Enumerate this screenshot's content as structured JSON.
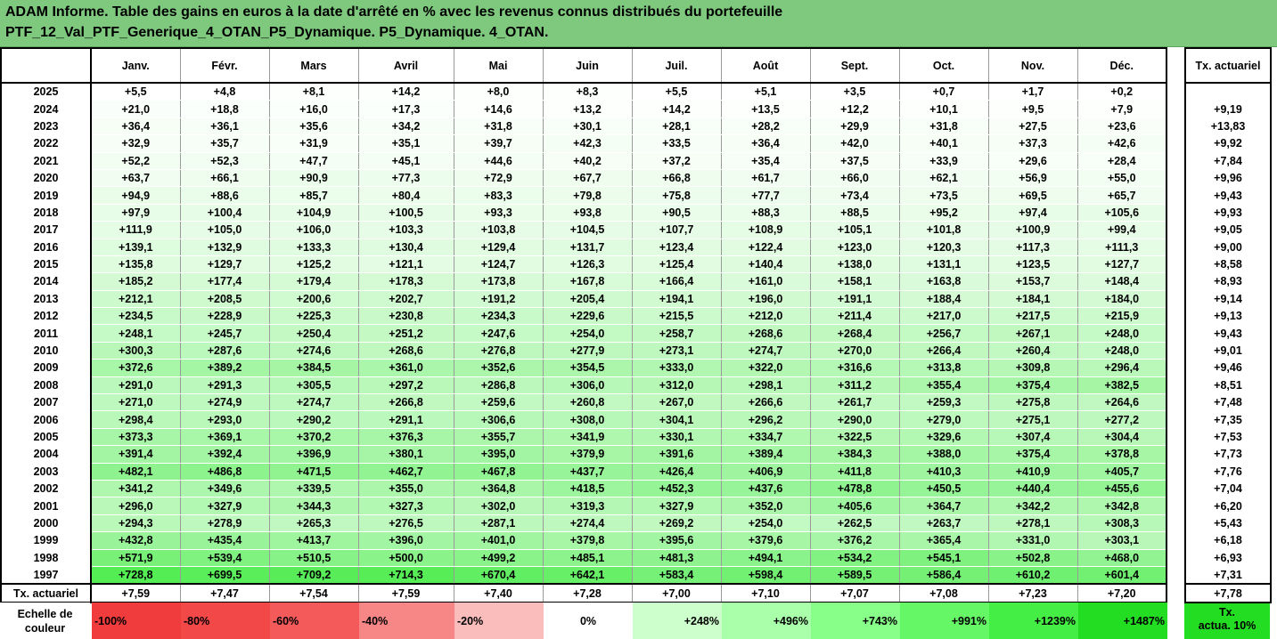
{
  "title_line1": "ADAM Informe. Table des gains en euros à la date d'arrêté en % avec les revenus connus distribués du portefeuille",
  "title_line2": "PTF_12_Val_PTF_Generique_4_OTAN_P5_Dynamique. P5_Dynamique. 4_OTAN.",
  "months": [
    "Janv.",
    "Févr.",
    "Mars",
    "Avril",
    "Mai",
    "Juin",
    "Juil.",
    "Août",
    "Sept.",
    "Oct.",
    "Nov.",
    "Déc."
  ],
  "side_header": "Tx. actuariel",
  "rows": [
    {
      "year": "2025",
      "values": [
        "+5,5",
        "+4,8",
        "+8,1",
        "+14,2",
        "+8,0",
        "+8,3",
        "+5,5",
        "+5,1",
        "+3,5",
        "+0,7",
        "+1,7",
        "+0,2"
      ],
      "tx": ""
    },
    {
      "year": "2024",
      "values": [
        "+21,0",
        "+18,8",
        "+16,0",
        "+17,3",
        "+14,6",
        "+13,2",
        "+14,2",
        "+13,5",
        "+12,2",
        "+10,1",
        "+9,5",
        "+7,9"
      ],
      "tx": "+9,19"
    },
    {
      "year": "2023",
      "values": [
        "+36,4",
        "+36,1",
        "+35,6",
        "+34,2",
        "+31,8",
        "+30,1",
        "+28,1",
        "+28,2",
        "+29,9",
        "+31,8",
        "+27,5",
        "+23,6"
      ],
      "tx": "+13,83"
    },
    {
      "year": "2022",
      "values": [
        "+32,9",
        "+35,7",
        "+31,9",
        "+35,1",
        "+39,7",
        "+42,3",
        "+33,5",
        "+36,4",
        "+42,0",
        "+40,1",
        "+37,3",
        "+42,6"
      ],
      "tx": "+9,92"
    },
    {
      "year": "2021",
      "values": [
        "+52,2",
        "+52,3",
        "+47,7",
        "+45,1",
        "+44,6",
        "+40,2",
        "+37,2",
        "+35,4",
        "+37,5",
        "+33,9",
        "+29,6",
        "+28,4"
      ],
      "tx": "+7,84"
    },
    {
      "year": "2020",
      "values": [
        "+63,7",
        "+66,1",
        "+90,9",
        "+77,3",
        "+72,9",
        "+67,7",
        "+66,8",
        "+61,7",
        "+66,0",
        "+62,1",
        "+56,9",
        "+55,0"
      ],
      "tx": "+9,96"
    },
    {
      "year": "2019",
      "values": [
        "+94,9",
        "+88,6",
        "+85,7",
        "+80,4",
        "+83,3",
        "+79,8",
        "+75,8",
        "+77,7",
        "+73,4",
        "+73,5",
        "+69,5",
        "+65,7"
      ],
      "tx": "+9,43"
    },
    {
      "year": "2018",
      "values": [
        "+97,9",
        "+100,4",
        "+104,9",
        "+100,5",
        "+93,3",
        "+93,8",
        "+90,5",
        "+88,3",
        "+88,5",
        "+95,2",
        "+97,4",
        "+105,6"
      ],
      "tx": "+9,93"
    },
    {
      "year": "2017",
      "values": [
        "+111,9",
        "+105,0",
        "+106,0",
        "+103,3",
        "+103,8",
        "+104,5",
        "+107,7",
        "+108,9",
        "+105,1",
        "+101,8",
        "+100,9",
        "+99,4"
      ],
      "tx": "+9,05"
    },
    {
      "year": "2016",
      "values": [
        "+139,1",
        "+132,9",
        "+133,3",
        "+130,4",
        "+129,4",
        "+131,7",
        "+123,4",
        "+122,4",
        "+123,0",
        "+120,3",
        "+117,3",
        "+111,3"
      ],
      "tx": "+9,00"
    },
    {
      "year": "2015",
      "values": [
        "+135,8",
        "+129,7",
        "+125,2",
        "+121,1",
        "+124,7",
        "+126,3",
        "+125,4",
        "+140,4",
        "+138,0",
        "+131,1",
        "+123,5",
        "+127,7"
      ],
      "tx": "+8,58"
    },
    {
      "year": "2014",
      "values": [
        "+185,2",
        "+177,4",
        "+179,4",
        "+178,3",
        "+173,8",
        "+167,8",
        "+166,4",
        "+161,0",
        "+158,1",
        "+163,8",
        "+153,7",
        "+148,4"
      ],
      "tx": "+8,93"
    },
    {
      "year": "2013",
      "values": [
        "+212,1",
        "+208,5",
        "+200,6",
        "+202,7",
        "+191,2",
        "+205,4",
        "+194,1",
        "+196,0",
        "+191,1",
        "+188,4",
        "+184,1",
        "+184,0"
      ],
      "tx": "+9,14"
    },
    {
      "year": "2012",
      "values": [
        "+234,5",
        "+228,9",
        "+225,3",
        "+230,8",
        "+234,3",
        "+229,6",
        "+215,5",
        "+212,0",
        "+211,4",
        "+217,0",
        "+217,5",
        "+215,9"
      ],
      "tx": "+9,13"
    },
    {
      "year": "2011",
      "values": [
        "+248,1",
        "+245,7",
        "+250,4",
        "+251,2",
        "+247,6",
        "+254,0",
        "+258,7",
        "+268,6",
        "+268,4",
        "+256,7",
        "+267,1",
        "+248,0"
      ],
      "tx": "+9,43"
    },
    {
      "year": "2010",
      "values": [
        "+300,3",
        "+287,6",
        "+274,6",
        "+268,6",
        "+276,8",
        "+277,9",
        "+273,1",
        "+274,7",
        "+270,0",
        "+266,4",
        "+260,4",
        "+248,0"
      ],
      "tx": "+9,01"
    },
    {
      "year": "2009",
      "values": [
        "+372,6",
        "+389,2",
        "+384,5",
        "+361,0",
        "+352,6",
        "+354,5",
        "+333,0",
        "+322,0",
        "+316,6",
        "+313,8",
        "+309,8",
        "+296,4"
      ],
      "tx": "+9,46"
    },
    {
      "year": "2008",
      "values": [
        "+291,0",
        "+291,3",
        "+305,5",
        "+297,2",
        "+286,8",
        "+306,0",
        "+312,0",
        "+298,1",
        "+311,2",
        "+355,4",
        "+375,4",
        "+382,5"
      ],
      "tx": "+8,51"
    },
    {
      "year": "2007",
      "values": [
        "+271,0",
        "+274,9",
        "+274,7",
        "+266,8",
        "+259,6",
        "+260,8",
        "+267,0",
        "+266,6",
        "+261,7",
        "+259,3",
        "+275,8",
        "+264,6"
      ],
      "tx": "+7,48"
    },
    {
      "year": "2006",
      "values": [
        "+298,4",
        "+293,0",
        "+290,2",
        "+291,1",
        "+306,6",
        "+308,0",
        "+304,1",
        "+296,2",
        "+290,0",
        "+279,0",
        "+275,1",
        "+277,2"
      ],
      "tx": "+7,35"
    },
    {
      "year": "2005",
      "values": [
        "+373,3",
        "+369,1",
        "+370,2",
        "+376,3",
        "+355,7",
        "+341,9",
        "+330,1",
        "+334,7",
        "+322,5",
        "+329,6",
        "+307,4",
        "+304,4"
      ],
      "tx": "+7,53"
    },
    {
      "year": "2004",
      "values": [
        "+391,4",
        "+392,4",
        "+396,9",
        "+380,1",
        "+395,0",
        "+379,9",
        "+391,6",
        "+389,4",
        "+384,3",
        "+388,0",
        "+375,4",
        "+378,8"
      ],
      "tx": "+7,73"
    },
    {
      "year": "2003",
      "values": [
        "+482,1",
        "+486,8",
        "+471,5",
        "+462,7",
        "+467,8",
        "+437,7",
        "+426,4",
        "+406,9",
        "+411,8",
        "+410,3",
        "+410,9",
        "+405,7"
      ],
      "tx": "+7,76"
    },
    {
      "year": "2002",
      "values": [
        "+341,2",
        "+349,6",
        "+339,5",
        "+355,0",
        "+364,8",
        "+418,5",
        "+452,3",
        "+437,6",
        "+478,8",
        "+450,5",
        "+440,4",
        "+455,6"
      ],
      "tx": "+7,04"
    },
    {
      "year": "2001",
      "values": [
        "+296,0",
        "+327,9",
        "+344,3",
        "+327,3",
        "+302,0",
        "+319,3",
        "+327,9",
        "+352,0",
        "+405,6",
        "+364,7",
        "+342,2",
        "+342,8"
      ],
      "tx": "+6,20"
    },
    {
      "year": "2000",
      "values": [
        "+294,3",
        "+278,9",
        "+265,3",
        "+276,5",
        "+287,1",
        "+274,4",
        "+269,2",
        "+254,0",
        "+262,5",
        "+263,7",
        "+278,1",
        "+308,3"
      ],
      "tx": "+5,43"
    },
    {
      "year": "1999",
      "values": [
        "+432,8",
        "+435,4",
        "+413,7",
        "+396,0",
        "+401,0",
        "+379,8",
        "+395,6",
        "+379,6",
        "+376,2",
        "+365,4",
        "+331,0",
        "+303,1"
      ],
      "tx": "+6,18"
    },
    {
      "year": "1998",
      "values": [
        "+571,9",
        "+539,4",
        "+510,5",
        "+500,0",
        "+499,2",
        "+485,1",
        "+481,3",
        "+494,1",
        "+534,2",
        "+545,1",
        "+502,8",
        "+468,0"
      ],
      "tx": "+6,93"
    },
    {
      "year": "1997",
      "values": [
        "+728,8",
        "+699,5",
        "+709,2",
        "+714,3",
        "+670,4",
        "+642,1",
        "+583,4",
        "+598,4",
        "+589,5",
        "+586,4",
        "+610,2",
        "+601,4"
      ],
      "tx": "+7,31"
    }
  ],
  "tx_row": {
    "label": "Tx. actuariel",
    "values": [
      "+7,59",
      "+7,47",
      "+7,54",
      "+7,59",
      "+7,40",
      "+7,28",
      "+7,00",
      "+7,10",
      "+7,07",
      "+7,08",
      "+7,23",
      "+7,20"
    ],
    "tx": "+7,78"
  },
  "scale": {
    "label_line1": "Echelle de",
    "label_line2": "couleur",
    "cells": [
      {
        "text": "-100%",
        "color": "#f03c3c",
        "align": "left"
      },
      {
        "text": "-80%",
        "color": "#f24848",
        "align": "left"
      },
      {
        "text": "-60%",
        "color": "#f45a5a",
        "align": "left"
      },
      {
        "text": "-40%",
        "color": "#f78686",
        "align": "left"
      },
      {
        "text": "-20%",
        "color": "#fbbcbc",
        "align": "left"
      },
      {
        "text": "0%",
        "color": "#ffffff",
        "align": "center"
      },
      {
        "text": "+248%",
        "color": "#ccffcc",
        "align": "right"
      },
      {
        "text": "+496%",
        "color": "#aaffaa",
        "align": "right"
      },
      {
        "text": "+743%",
        "color": "#88ff88",
        "align": "right"
      },
      {
        "text": "+991%",
        "color": "#66f766",
        "align": "right"
      },
      {
        "text": "+1239%",
        "color": "#44ee44",
        "align": "right"
      },
      {
        "text": "+1487%",
        "color": "#22dd22",
        "align": "right"
      }
    ],
    "tx_line1": "Tx.",
    "tx_line2": "actua. 10%"
  },
  "colors": {
    "header_bg": "#7ec97e",
    "max_green": "#22dd22"
  }
}
